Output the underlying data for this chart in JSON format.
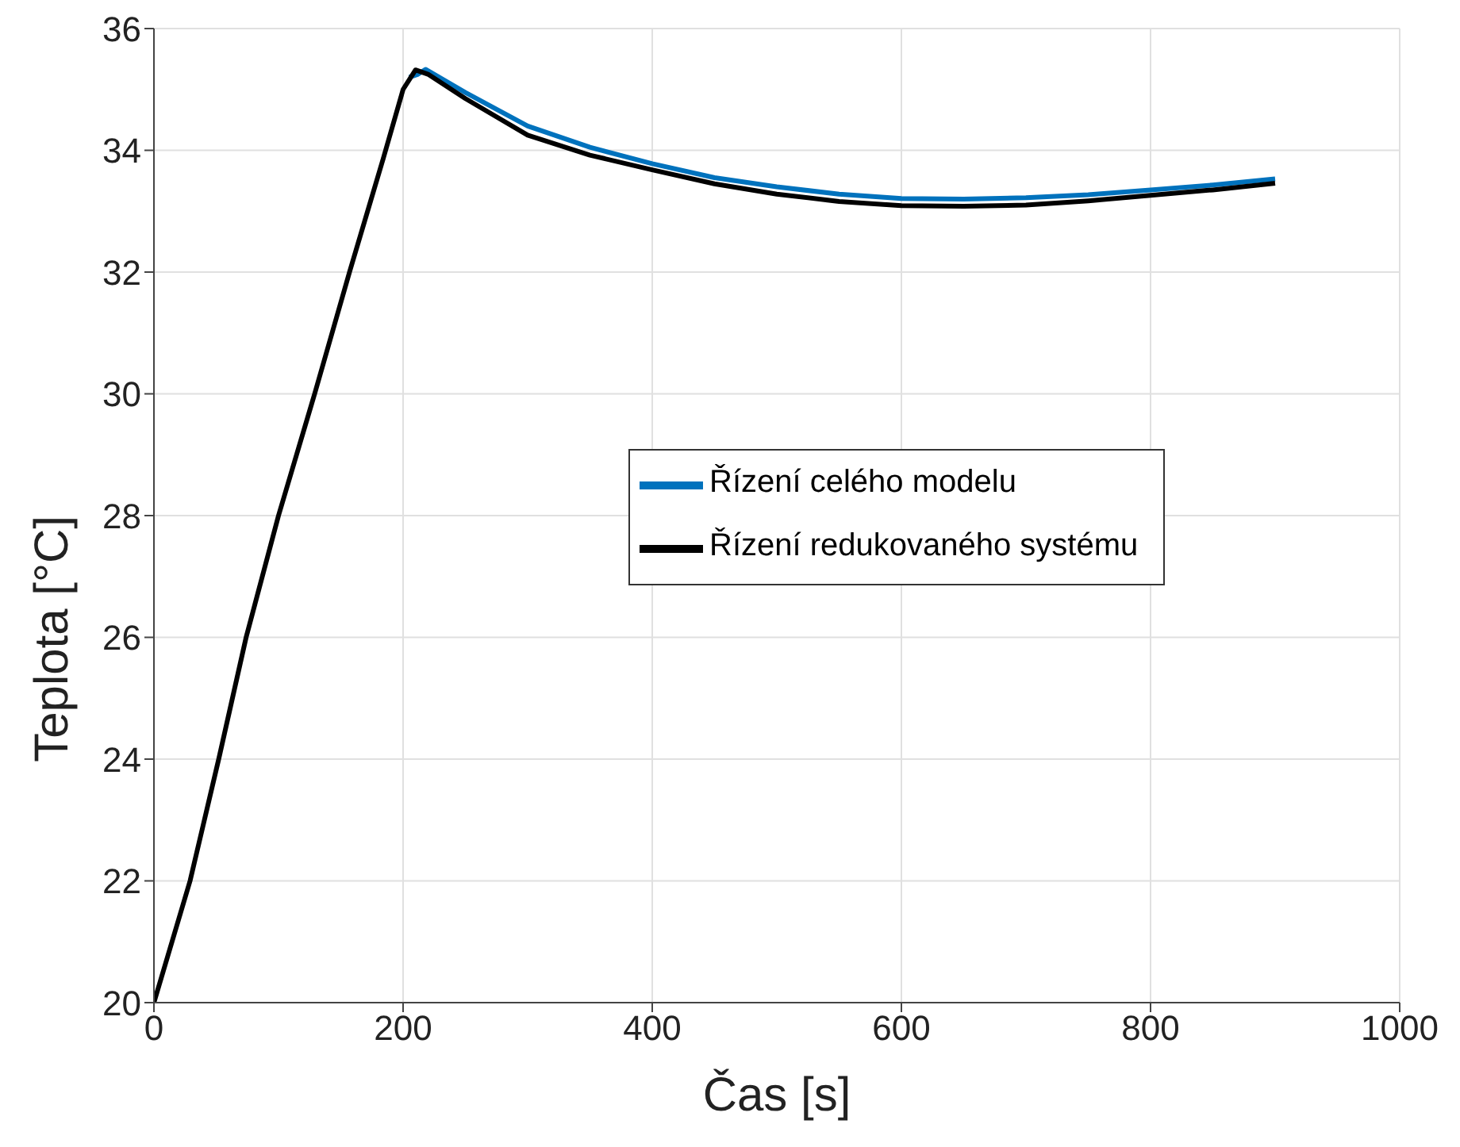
{
  "chart_data": {
    "type": "line",
    "xlabel": "Čas [s]",
    "ylabel": "Teplota [°C]",
    "xlim": [
      0,
      1000
    ],
    "ylim": [
      20,
      36
    ],
    "xticks": [
      0,
      200,
      400,
      600,
      800,
      1000
    ],
    "yticks": [
      20,
      22,
      24,
      26,
      28,
      30,
      32,
      34,
      36
    ],
    "grid": true,
    "legend": "right",
    "marker": "none",
    "line_style": "solid",
    "series": [
      {
        "name": "Řízení celého modelu",
        "color": "#0072bd",
        "x": [
          205,
          212,
          218,
          250,
          300,
          350,
          400,
          450,
          500,
          550,
          600,
          650,
          700,
          750,
          800,
          850,
          900
        ],
        "values": [
          35.2,
          35.25,
          35.33,
          34.95,
          34.4,
          34.05,
          33.78,
          33.55,
          33.4,
          33.28,
          33.21,
          33.2,
          33.22,
          33.27,
          33.35,
          33.43,
          33.53
        ]
      },
      {
        "name": "Řízení redukovaného systému",
        "color": "#000000",
        "x": [
          0,
          29,
          52,
          74,
          100,
          129,
          157,
          184,
          200,
          210,
          220,
          250,
          300,
          350,
          400,
          450,
          500,
          550,
          600,
          650,
          700,
          750,
          800,
          850,
          900
        ],
        "values": [
          20,
          22,
          24,
          26,
          28,
          30,
          32,
          33.86,
          35,
          35.32,
          35.25,
          34.85,
          34.25,
          33.92,
          33.68,
          33.45,
          33.28,
          33.16,
          33.09,
          33.08,
          33.1,
          33.17,
          33.26,
          33.35,
          33.46
        ]
      }
    ]
  }
}
